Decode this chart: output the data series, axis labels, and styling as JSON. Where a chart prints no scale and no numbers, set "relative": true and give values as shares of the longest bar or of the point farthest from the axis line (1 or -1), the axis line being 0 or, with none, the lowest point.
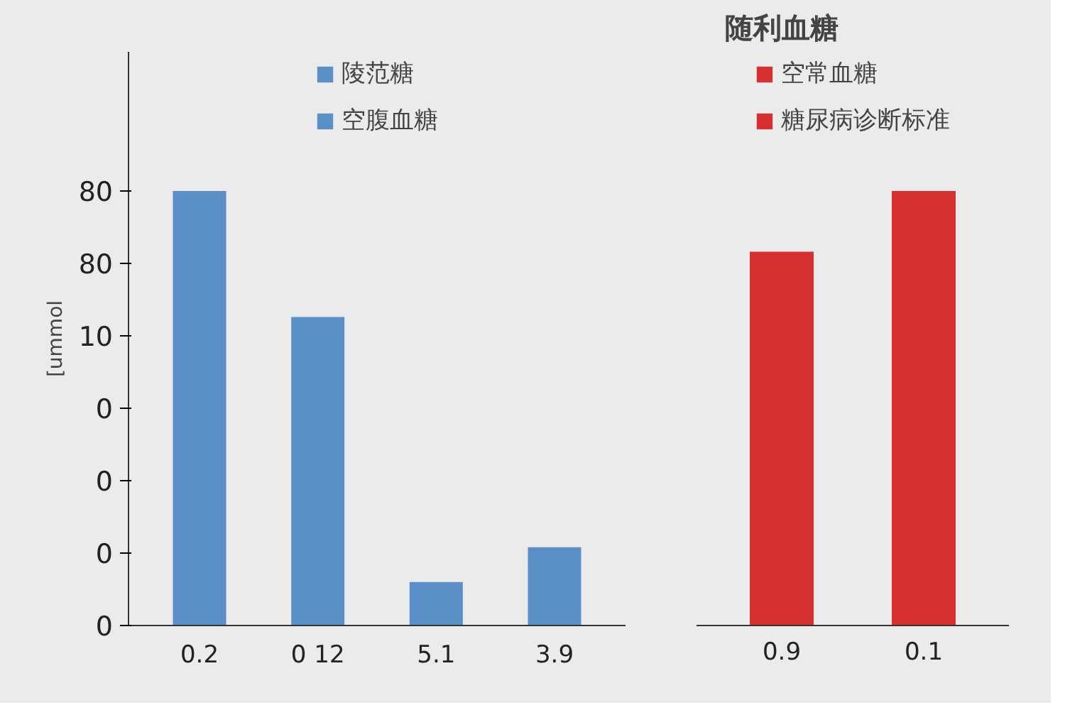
{
  "chart_data": [
    {
      "type": "bar",
      "categories": [
        "0.2",
        "0 12",
        "5.1",
        "3.9"
      ],
      "ylabel": "[ummol",
      "relative": true,
      "annotations": [
        "80",
        "80",
        "10",
        "0",
        "0",
        "0",
        "0"
      ],
      "series": [
        {
          "name": "陵范糖",
          "color": "#5b8fc7",
          "values": [
            1,
            0.71,
            0.1,
            0.18
          ]
        },
        {
          "name": "空腹血糖",
          "color": "#5b8fc7",
          "values": [
            null,
            null,
            null,
            null
          ]
        }
      ],
      "legend": "top"
    },
    {
      "type": "bar",
      "title": "随利血糖",
      "categories": [
        "0.9",
        "0.1"
      ],
      "relative": true,
      "series": [
        {
          "name": "空常血糖",
          "color": "#d63030",
          "values": [
            0.86,
            null
          ]
        },
        {
          "name": "糖尿病诊断标准",
          "color": "#d63030",
          "values": [
            null,
            1
          ]
        }
      ],
      "legend": "top"
    }
  ]
}
